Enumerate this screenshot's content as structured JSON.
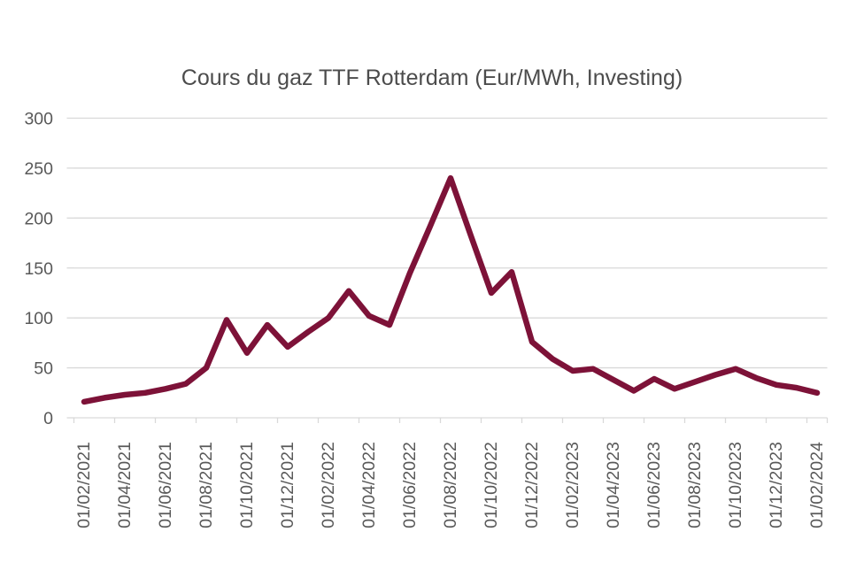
{
  "chart_data": {
    "type": "line",
    "title": "Cours du gaz TTF Rotterdam (Eur/MWh, Investing)",
    "xlabel": "",
    "ylabel": "",
    "ylim": [
      0,
      300
    ],
    "y_ticks": [
      0,
      50,
      100,
      150,
      200,
      250,
      300
    ],
    "grid": "horizontal",
    "legend": "none",
    "x_tick_step": 2,
    "x_tick_labels": [
      "01/02/2021",
      "01/04/2021",
      "01/06/2021",
      "01/08/2021",
      "01/10/2021",
      "01/12/2021",
      "01/02/2022",
      "01/04/2022",
      "01/06/2022",
      "01/08/2022",
      "01/10/2022",
      "01/12/2022",
      "01/02/2023",
      "01/04/2023",
      "01/06/2023",
      "01/08/2023",
      "01/10/2023",
      "01/12/2023",
      "01/02/2024"
    ],
    "x": [
      "01/02/2021",
      "01/03/2021",
      "01/04/2021",
      "01/05/2021",
      "01/06/2021",
      "01/07/2021",
      "01/08/2021",
      "01/09/2021",
      "01/10/2021",
      "01/11/2021",
      "01/12/2021",
      "01/01/2022",
      "01/02/2022",
      "01/03/2022",
      "01/04/2022",
      "01/05/2022",
      "01/06/2022",
      "01/07/2022",
      "01/08/2022",
      "01/09/2022",
      "01/10/2022",
      "01/11/2022",
      "01/12/2022",
      "01/01/2023",
      "01/02/2023",
      "01/03/2023",
      "01/04/2023",
      "01/05/2023",
      "01/06/2023",
      "01/07/2023",
      "01/08/2023",
      "01/09/2023",
      "01/10/2023",
      "01/11/2023",
      "01/12/2023",
      "01/01/2024",
      "01/02/2024"
    ],
    "series": [
      {
        "name": "Cours du gaz TTF Rotterdam",
        "values": [
          16,
          20,
          23,
          25,
          29,
          34,
          50,
          98,
          65,
          93,
          71,
          86,
          100,
          127,
          102,
          93,
          145,
          192,
          240,
          182,
          125,
          146,
          76,
          59,
          47,
          49,
          38,
          27,
          39,
          29,
          36,
          43,
          49,
          40,
          33,
          30,
          25
        ]
      }
    ],
    "colors": {
      "line": "#7d1238",
      "grid": "#d9d9d9",
      "axis_line": "#d9d9d9",
      "axis_text": "#595959",
      "title_text": "#4c4c4c",
      "background": "#ffffff"
    }
  }
}
